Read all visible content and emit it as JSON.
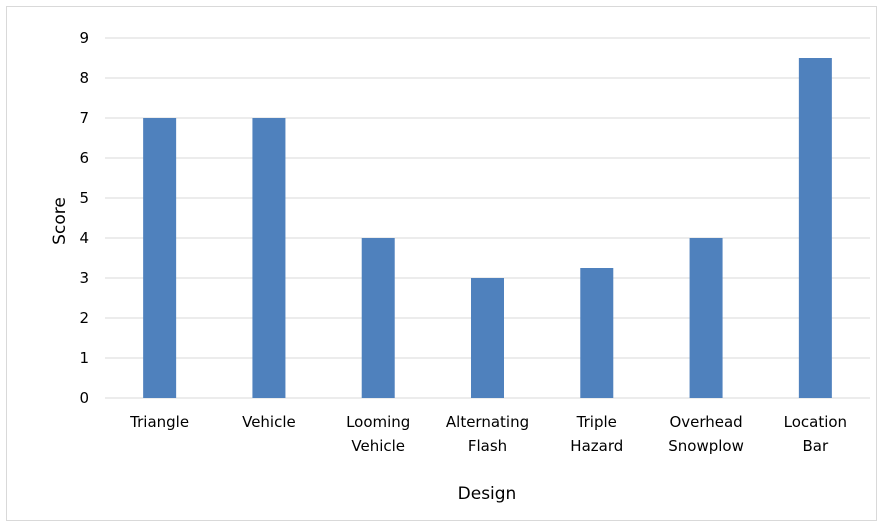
{
  "chart_data": {
    "type": "bar",
    "title": "",
    "xlabel": "Design",
    "ylabel": "Score",
    "categories": [
      [
        "Triangle"
      ],
      [
        "Vehicle"
      ],
      [
        "Looming",
        "Vehicle"
      ],
      [
        "Alternating",
        "Flash"
      ],
      [
        "Triple",
        "Hazard"
      ],
      [
        "Overhead",
        "Snowplow"
      ],
      [
        "Location",
        "Bar"
      ]
    ],
    "values": [
      7,
      7,
      4,
      3,
      3.25,
      4,
      8.5
    ],
    "ylim": [
      0,
      9
    ],
    "yticks": [
      "0",
      "1",
      "2",
      "3",
      "4",
      "5",
      "6",
      "7",
      "8",
      "9"
    ],
    "grid": true,
    "legend": "none",
    "bar_color": "#4f81bd",
    "grid_color": "#d9d9d9"
  }
}
